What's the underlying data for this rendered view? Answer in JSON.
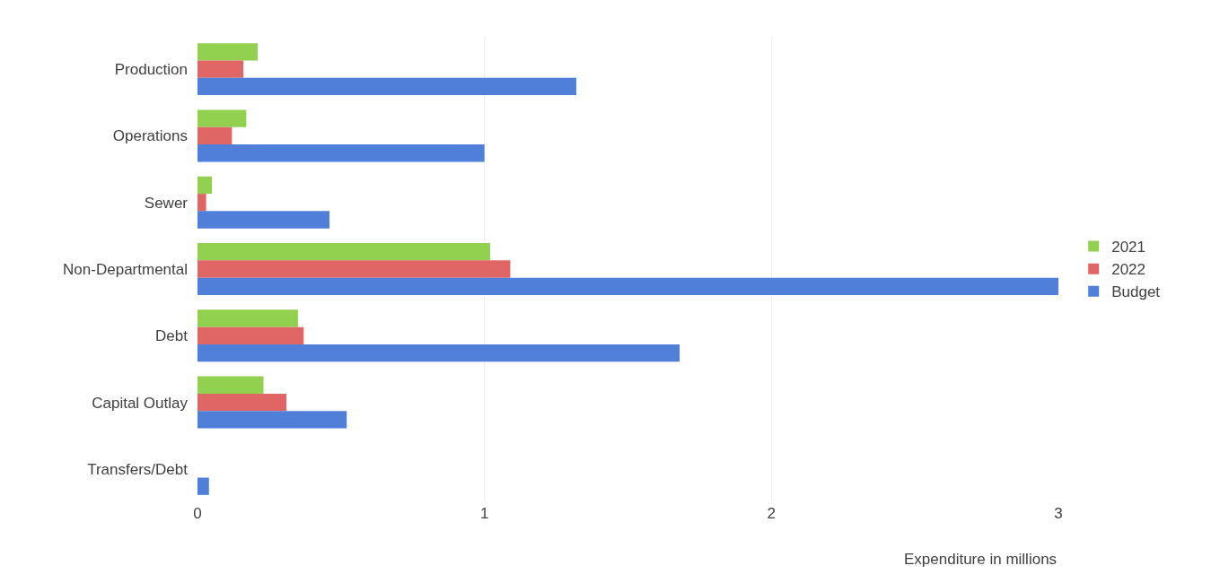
{
  "chart_data": {
    "type": "bar",
    "orientation": "horizontal",
    "xlabel": "Expenditure in millions",
    "categories": [
      "Production",
      "Operations",
      "Sewer",
      "Non-Departmental",
      "Debt",
      "Capital Outlay",
      "Transfers/Debt"
    ],
    "series": [
      {
        "name": "2021",
        "color": "#92d050",
        "values": [
          0.21,
          0.17,
          0.05,
          1.02,
          0.35,
          0.23,
          null
        ]
      },
      {
        "name": "2022",
        "color": "#e06666",
        "values": [
          0.16,
          0.12,
          0.03,
          1.09,
          0.37,
          0.31,
          null
        ]
      },
      {
        "name": "Budget",
        "color": "#4f7fd8",
        "values": [
          1.32,
          1.0,
          0.46,
          3.0,
          1.68,
          0.52,
          0.04
        ]
      }
    ],
    "xlim": [
      0,
      3
    ],
    "xticks": [
      0,
      1,
      2,
      3
    ],
    "grid": "x",
    "legend": "right"
  }
}
